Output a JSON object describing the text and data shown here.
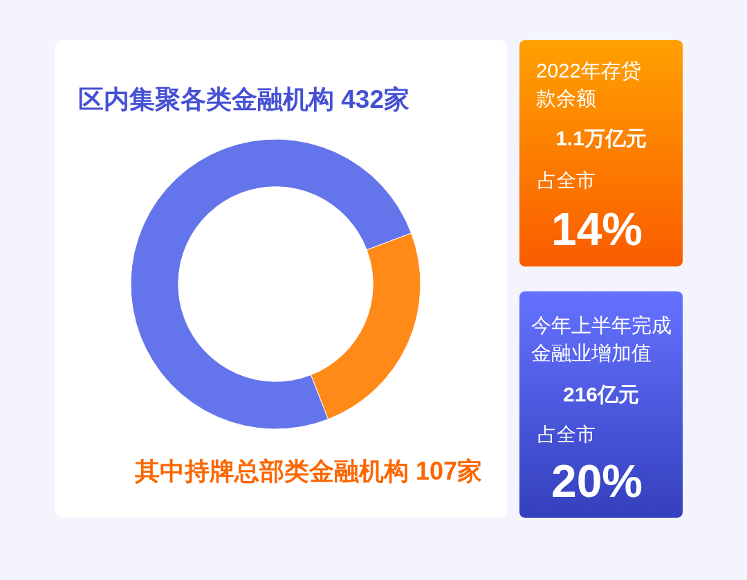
{
  "chart_data": [
    {
      "type": "donut",
      "title": "区内集聚各类金融机构 432家",
      "categories": [
        null,
        null
      ],
      "values": [
        75.2,
        24.8
      ],
      "colors": [
        "#6474ea",
        "#ff8a18"
      ],
      "annotations": [
        "其中持牌总部类金融机构 107家"
      ]
    },
    {
      "type": "other",
      "title": "2022年存贷款余额",
      "annotations": [
        "1.1万亿元",
        "占全市",
        "14%"
      ]
    },
    {
      "type": "other",
      "title": "今年上半年完成金融业增加值",
      "annotations": [
        "216亿元",
        "占全市",
        "20%"
      ]
    }
  ]
}
